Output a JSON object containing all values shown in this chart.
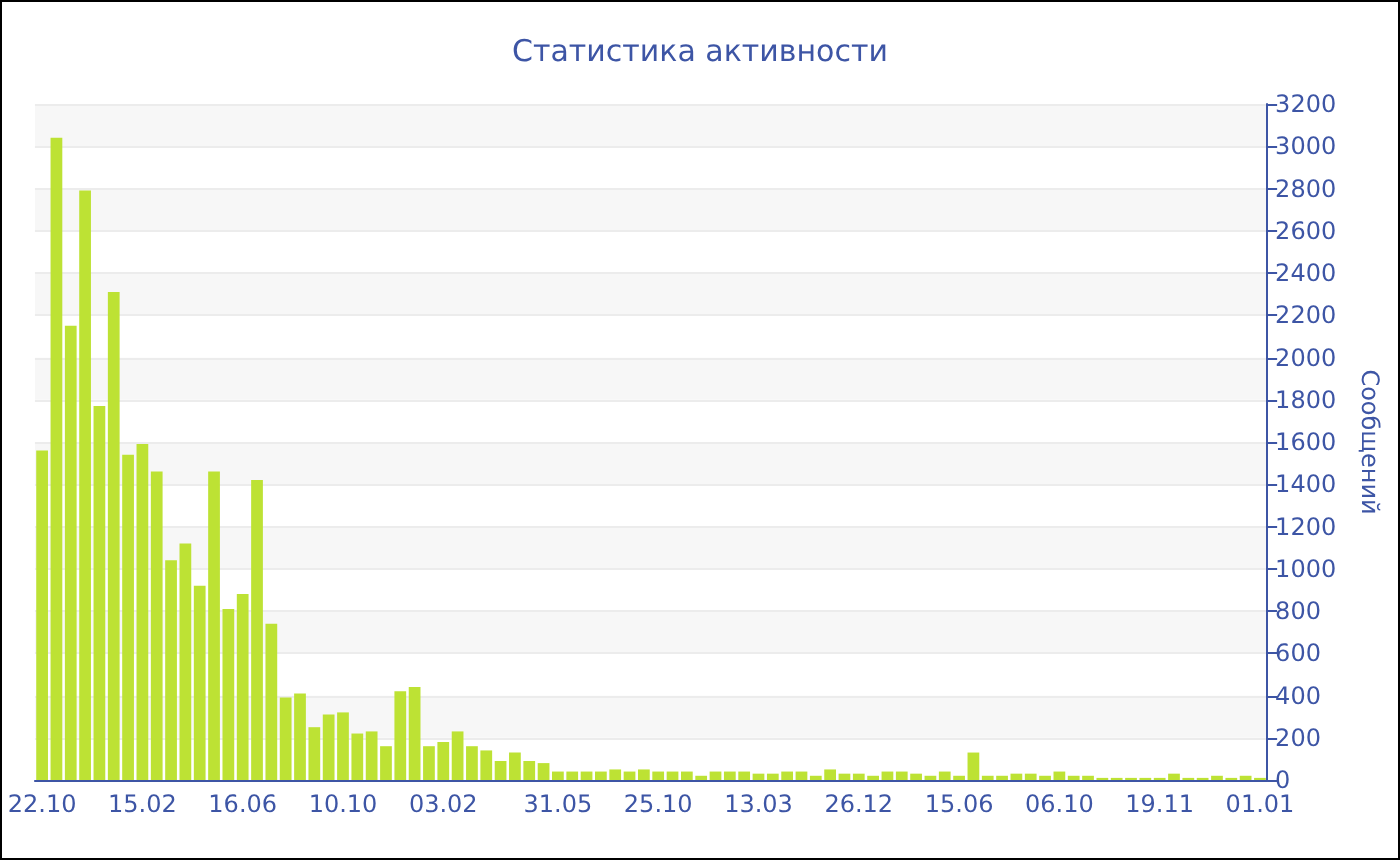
{
  "chart_data": {
    "type": "bar",
    "title": "Статистика активности",
    "ylabel": "Сообщений",
    "categories": [
      "22.10",
      null,
      null,
      null,
      null,
      null,
      null,
      "15.02",
      null,
      null,
      null,
      null,
      null,
      null,
      "16.06",
      null,
      null,
      null,
      null,
      null,
      null,
      "10.10",
      null,
      null,
      null,
      null,
      null,
      null,
      "03.02",
      null,
      null,
      null,
      null,
      null,
      null,
      null,
      "31.05",
      null,
      null,
      null,
      null,
      null,
      null,
      "25.10",
      null,
      null,
      null,
      null,
      null,
      null,
      "13.03",
      null,
      null,
      null,
      null,
      null,
      null,
      "26.12",
      null,
      null,
      null,
      null,
      null,
      null,
      "15.06",
      null,
      null,
      null,
      null,
      null,
      null,
      "06.10",
      null,
      null,
      null,
      null,
      null,
      null,
      "19.11",
      null,
      null,
      null,
      null,
      null,
      null,
      "01.01"
    ],
    "values": [
      1560,
      3040,
      2150,
      2790,
      1770,
      2310,
      1540,
      1590,
      1460,
      1040,
      1120,
      920,
      1460,
      810,
      880,
      1420,
      740,
      390,
      410,
      250,
      310,
      320,
      220,
      230,
      160,
      420,
      440,
      160,
      180,
      230,
      160,
      140,
      90,
      130,
      90,
      80,
      40,
      40,
      40,
      40,
      50,
      40,
      50,
      40,
      40,
      40,
      20,
      40,
      40,
      40,
      30,
      30,
      40,
      40,
      20,
      50,
      30,
      30,
      20,
      40,
      40,
      30,
      20,
      40,
      20,
      130,
      20,
      20,
      30,
      30,
      20,
      40,
      20,
      20,
      10,
      10,
      10,
      10,
      10,
      30,
      10,
      10,
      20,
      10,
      20,
      10
    ],
    "color": "#bde234",
    "ylim": [
      0,
      3200
    ],
    "yticks": [
      0,
      200,
      400,
      600,
      800,
      1000,
      1200,
      1400,
      1600,
      1800,
      2000,
      2200,
      2400,
      2600,
      2800,
      3000,
      3200
    ],
    "grid": "y"
  }
}
